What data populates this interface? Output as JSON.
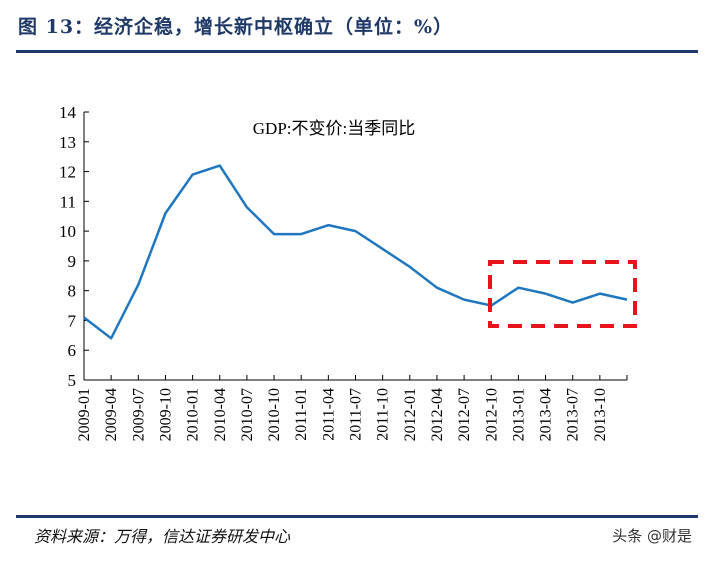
{
  "header": {
    "title": "图 13：经济企稳，增长新中枢确立（单位：%）"
  },
  "footer": {
    "source": "资料来源：万得，信达证券研发中心",
    "watermark": "头条 @财是"
  },
  "colors": {
    "line": "#1f77c0",
    "highlight_box": "#e8141b",
    "rule": "#1f3a68"
  },
  "chart_data": {
    "type": "line",
    "title": "GDP:不变价:当季同比",
    "xlabel": "",
    "ylabel": "",
    "ylim": [
      5,
      14
    ],
    "yticks": [
      "5",
      "6",
      "7",
      "8",
      "9",
      "10",
      "11",
      "12",
      "13",
      "14"
    ],
    "x_tick_labels": [
      "2009-01",
      "2009-04",
      "2009-07",
      "2009-10",
      "2010-01",
      "2010-04",
      "2010-07",
      "2010-10",
      "2011-01",
      "2011-04",
      "2011-07",
      "2011-10",
      "2012-01",
      "2012-04",
      "2012-07",
      "2012-10",
      "2013-01",
      "2013-04",
      "2013-07",
      "2013-10"
    ],
    "values": [
      7.1,
      6.4,
      8.2,
      10.6,
      11.9,
      12.2,
      10.8,
      9.9,
      9.9,
      10.2,
      10.0,
      9.4,
      8.8,
      8.1,
      7.7,
      7.5,
      8.1,
      7.9,
      7.6,
      7.9,
      7.7
    ],
    "grid": false,
    "annotation": "red dashed box highlighting 2012-10 onward"
  }
}
